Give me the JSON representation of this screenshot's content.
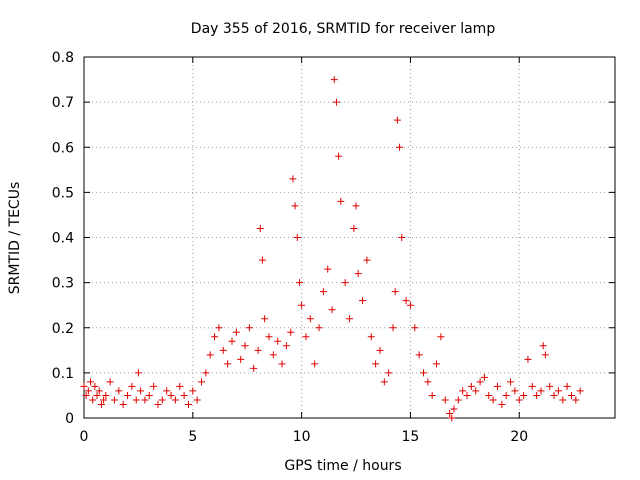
{
  "chart_data": {
    "type": "scatter",
    "title": "Day 355 of 2016, SRMTID for receiver lamp",
    "xlabel": "GPS time / hours",
    "ylabel": "SRMTID / TECUs",
    "xlim": [
      0,
      24.4
    ],
    "ylim": [
      0,
      0.8
    ],
    "xticks": [
      0,
      5,
      10,
      15,
      20
    ],
    "yticks": [
      0,
      0.1,
      0.2,
      0.3,
      0.4,
      0.5,
      0.6,
      0.7,
      0.8
    ],
    "xtick_labels": [
      "0",
      "5",
      "10",
      "15",
      "20"
    ],
    "ytick_labels": [
      "0",
      "0.1",
      "0.2",
      "0.3",
      "0.4",
      "0.5",
      "0.6",
      "0.7",
      "0.8"
    ],
    "grid": true,
    "marker": "+",
    "series_color": "#e00000",
    "series": [
      {
        "name": "SRMTID",
        "x": [
          0.0,
          0.1,
          0.2,
          0.3,
          0.4,
          0.5,
          0.6,
          0.7,
          0.8,
          0.9,
          1.0,
          1.2,
          1.4,
          1.6,
          1.8,
          2.0,
          2.2,
          2.4,
          2.5,
          2.6,
          2.8,
          3.0,
          3.2,
          3.4,
          3.6,
          3.8,
          4.0,
          4.2,
          4.4,
          4.6,
          4.8,
          5.0,
          5.2,
          5.4,
          5.6,
          5.8,
          6.0,
          6.2,
          6.4,
          6.6,
          6.8,
          7.0,
          7.2,
          7.4,
          7.6,
          7.8,
          8.0,
          8.1,
          8.2,
          8.3,
          8.5,
          8.7,
          8.9,
          9.1,
          9.3,
          9.5,
          9.6,
          9.7,
          9.8,
          9.9,
          10.0,
          10.2,
          10.4,
          10.6,
          10.8,
          11.0,
          11.2,
          11.4,
          11.5,
          11.6,
          11.7,
          11.8,
          12.0,
          12.2,
          12.4,
          12.5,
          12.6,
          12.8,
          13.0,
          13.2,
          13.4,
          13.6,
          13.8,
          14.0,
          14.2,
          14.3,
          14.4,
          14.5,
          14.6,
          14.8,
          15.0,
          15.2,
          15.4,
          15.6,
          15.8,
          16.0,
          16.2,
          16.4,
          16.6,
          16.8,
          16.9,
          17.0,
          17.2,
          17.4,
          17.6,
          17.8,
          18.0,
          18.2,
          18.4,
          18.6,
          18.8,
          19.0,
          19.2,
          19.4,
          19.6,
          19.8,
          20.0,
          20.2,
          20.4,
          20.6,
          20.8,
          21.0,
          21.1,
          21.2,
          21.4,
          21.6,
          21.8,
          22.0,
          22.2,
          22.4,
          22.6,
          22.8
        ],
        "y": [
          0.07,
          0.05,
          0.06,
          0.08,
          0.04,
          0.07,
          0.05,
          0.06,
          0.03,
          0.04,
          0.05,
          0.08,
          0.04,
          0.06,
          0.03,
          0.05,
          0.07,
          0.04,
          0.1,
          0.06,
          0.04,
          0.05,
          0.07,
          0.03,
          0.04,
          0.06,
          0.05,
          0.04,
          0.07,
          0.05,
          0.03,
          0.06,
          0.04,
          0.08,
          0.1,
          0.14,
          0.18,
          0.2,
          0.15,
          0.12,
          0.17,
          0.19,
          0.13,
          0.16,
          0.2,
          0.11,
          0.15,
          0.42,
          0.35,
          0.22,
          0.18,
          0.14,
          0.17,
          0.12,
          0.16,
          0.19,
          0.53,
          0.47,
          0.4,
          0.3,
          0.25,
          0.18,
          0.22,
          0.12,
          0.2,
          0.28,
          0.33,
          0.24,
          0.75,
          0.7,
          0.58,
          0.48,
          0.3,
          0.22,
          0.42,
          0.47,
          0.32,
          0.26,
          0.35,
          0.18,
          0.12,
          0.15,
          0.08,
          0.1,
          0.2,
          0.28,
          0.66,
          0.6,
          0.4,
          0.26,
          0.25,
          0.2,
          0.14,
          0.1,
          0.08,
          0.05,
          0.12,
          0.18,
          0.04,
          0.01,
          0.0,
          0.02,
          0.04,
          0.06,
          0.05,
          0.07,
          0.06,
          0.08,
          0.09,
          0.05,
          0.04,
          0.07,
          0.03,
          0.05,
          0.08,
          0.06,
          0.04,
          0.05,
          0.13,
          0.07,
          0.05,
          0.06,
          0.16,
          0.14,
          0.07,
          0.05,
          0.06,
          0.04,
          0.07,
          0.05,
          0.04,
          0.06
        ]
      }
    ]
  }
}
